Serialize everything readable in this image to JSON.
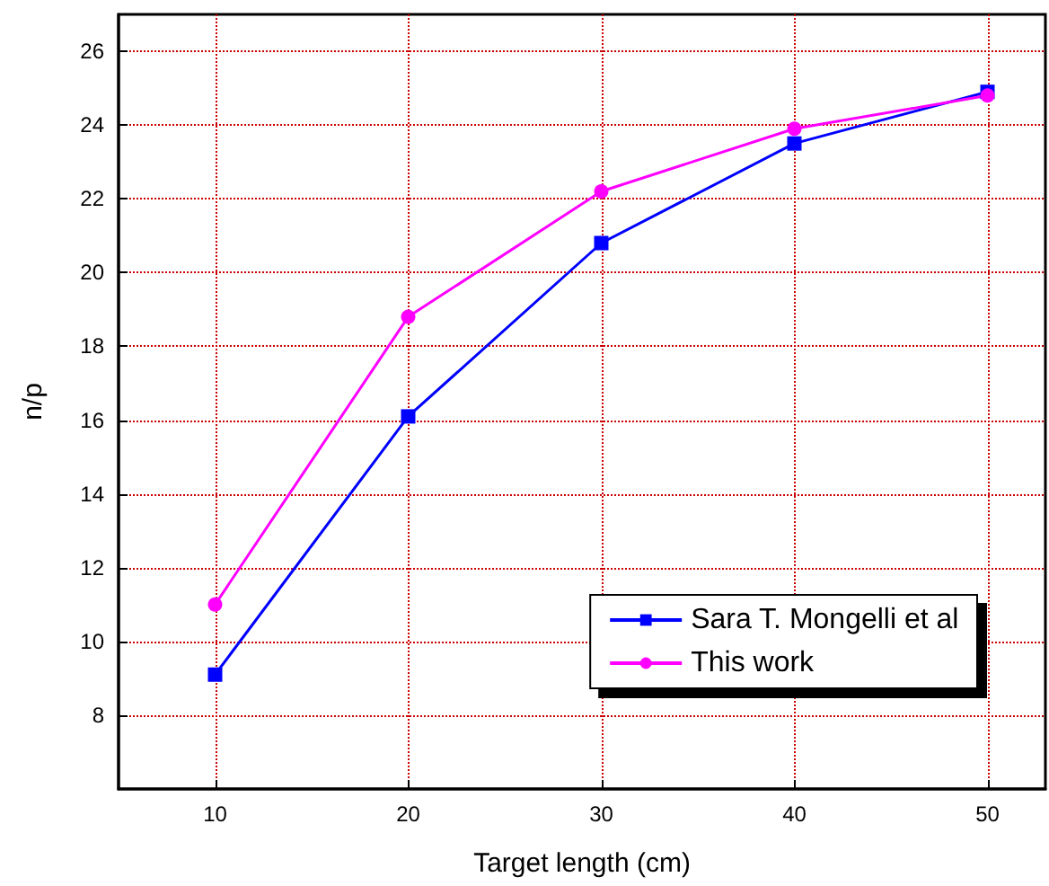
{
  "chart_data": {
    "type": "line",
    "xlabel": "Target length (cm)",
    "ylabel": "n/p",
    "x": [
      10,
      20,
      30,
      40,
      50
    ],
    "series": [
      {
        "name": "Sara T. Mongelli et al",
        "color": "#0000ff",
        "marker": "square",
        "values": [
          9.1,
          16.1,
          20.8,
          23.5,
          24.9
        ]
      },
      {
        "name": "This work",
        "color": "#ff00ff",
        "marker": "circle",
        "values": [
          11.0,
          18.8,
          22.2,
          23.9,
          24.8
        ]
      }
    ],
    "xlim": [
      5,
      53
    ],
    "xticks": [
      10,
      20,
      30,
      40,
      50
    ],
    "ylim": [
      6,
      27
    ],
    "yticks": [
      8,
      10,
      12,
      14,
      16,
      18,
      20,
      22,
      24,
      26
    ],
    "grid": true,
    "legend": "bottom right",
    "line_style": "solid"
  }
}
